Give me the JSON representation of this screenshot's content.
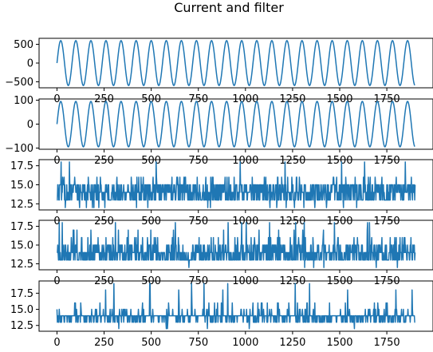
{
  "chart_data": {
    "type": "line",
    "title": "Current and filter",
    "line_color": "#1f77b4",
    "grid": false,
    "panels": [
      {
        "name": "panel-1",
        "kind": "sine",
        "amplitude": 600,
        "period": 80,
        "n_points": 1900,
        "x_range": [
          0,
          1900
        ],
        "xlim": [
          -95,
          1995
        ],
        "ylim": [
          -660,
          660
        ],
        "xticks": [
          0,
          250,
          500,
          750,
          1000,
          1250,
          1500,
          1750
        ],
        "yticks": [
          -500,
          0,
          500
        ],
        "xtick_labels": [
          "0",
          "250",
          "500",
          "750",
          "1000",
          "1250",
          "1500",
          "1750"
        ],
        "ytick_labels": [
          "−500",
          "0",
          "500"
        ]
      },
      {
        "name": "panel-2",
        "kind": "sine",
        "amplitude": 95,
        "period": 80,
        "n_points": 1900,
        "x_range": [
          0,
          1900
        ],
        "xlim": [
          -95,
          1995
        ],
        "ylim": [
          -105,
          105
        ],
        "xticks": [
          0,
          250,
          500,
          750,
          1000,
          1250,
          1500,
          1750
        ],
        "yticks": [
          -100,
          0,
          100
        ],
        "xtick_labels": [
          "0",
          "250",
          "500",
          "750",
          "1000",
          "1250",
          "1500",
          "1750"
        ],
        "ytick_labels": [
          "−100",
          "0",
          "100"
        ]
      },
      {
        "name": "panel-3",
        "kind": "noise",
        "levels": [
          12,
          13,
          14,
          15,
          16,
          18
        ],
        "level_weights": [
          0.02,
          0.3,
          0.33,
          0.29,
          0.05,
          0.01
        ],
        "x_range": [
          0,
          1900
        ],
        "xlim": [
          -95,
          1995
        ],
        "ylim": [
          11.7,
          18.3
        ],
        "xticks": [
          0,
          250,
          500,
          750,
          1000,
          1250,
          1500,
          1750
        ],
        "yticks": [
          12.5,
          15.0,
          17.5
        ],
        "xtick_labels": [
          "0",
          "250",
          "500",
          "750",
          "1000",
          "1250",
          "1500",
          "1750"
        ],
        "ytick_labels": [
          "12.5",
          "15.0",
          "17.5"
        ]
      },
      {
        "name": "panel-4",
        "kind": "noise",
        "levels": [
          12,
          13,
          14,
          15,
          16,
          17,
          18
        ],
        "level_weights": [
          0.005,
          0.35,
          0.38,
          0.18,
          0.06,
          0.015,
          0.01
        ],
        "x_range": [
          0,
          1900
        ],
        "xlim": [
          -95,
          1995
        ],
        "ylim": [
          11.7,
          18.3
        ],
        "xticks": [
          0,
          250,
          500,
          750,
          1000,
          1250,
          1500,
          1750
        ],
        "yticks": [
          12.5,
          15.0,
          17.5
        ],
        "xtick_labels": [
          "0",
          "250",
          "500",
          "750",
          "1000",
          "1250",
          "1500",
          "1750"
        ],
        "ytick_labels": [
          "12.5",
          "15.0",
          "17.5"
        ]
      },
      {
        "name": "panel-5",
        "kind": "noise",
        "levels": [
          12,
          13,
          14,
          15,
          16,
          17,
          18,
          19
        ],
        "level_weights": [
          0.005,
          0.25,
          0.62,
          0.07,
          0.025,
          0.01,
          0.01,
          0.01
        ],
        "x_range": [
          0,
          1900
        ],
        "xlim": [
          -95,
          1995
        ],
        "ylim": [
          11.6,
          19.4
        ],
        "xticks": [
          0,
          250,
          500,
          750,
          1000,
          1250,
          1500,
          1750
        ],
        "yticks": [
          12.5,
          15.0,
          17.5
        ],
        "xtick_labels": [
          "0",
          "250",
          "500",
          "750",
          "1000",
          "1250",
          "1500",
          "1750"
        ],
        "ytick_labels": [
          "12.5",
          "15.0",
          "17.5"
        ]
      }
    ]
  }
}
